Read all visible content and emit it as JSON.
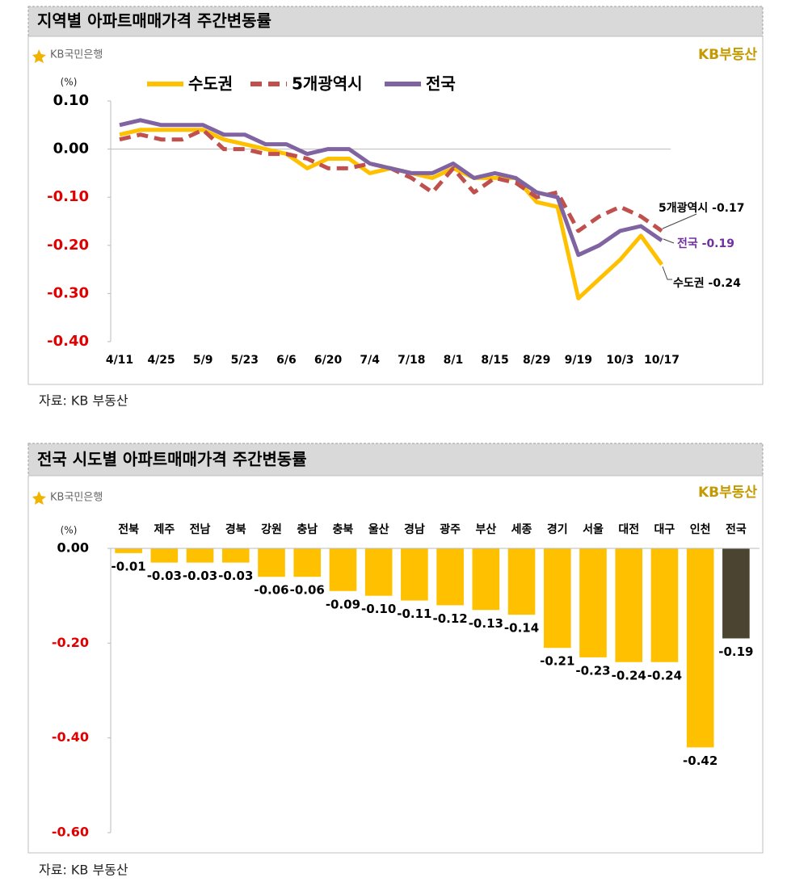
{
  "chart_data": [
    {
      "type": "line",
      "title": "지역별 아파트매매가격 주간변동률",
      "bank_logo": "KB국민은행",
      "brand_logo": "KB부동산",
      "unit": "(%)",
      "source": "자료: KB 부동산",
      "categories": [
        "4/11",
        null,
        "4/25",
        null,
        "5/9",
        null,
        "5/23",
        null,
        "6/6",
        null,
        "6/20",
        null,
        "7/4",
        null,
        "7/18",
        null,
        "8/1",
        null,
        "8/15",
        null,
        "8/29",
        null,
        "9/19",
        null,
        "10/3",
        null,
        "10/17"
      ],
      "series": [
        {
          "name": "수도권",
          "color": "#ffc000",
          "style": "solid",
          "values": [
            0.03,
            0.04,
            0.04,
            0.04,
            0.04,
            0.02,
            0.01,
            0.0,
            -0.01,
            -0.04,
            -0.02,
            -0.02,
            -0.05,
            -0.04,
            -0.05,
            -0.06,
            -0.04,
            -0.06,
            -0.06,
            -0.06,
            -0.11,
            -0.12,
            -0.31,
            -0.27,
            -0.23,
            -0.18,
            -0.24
          ]
        },
        {
          "name": "5개광역시",
          "color": "#c0504d",
          "style": "dashed",
          "values": [
            0.02,
            0.03,
            0.02,
            0.02,
            0.04,
            0.0,
            0.0,
            -0.01,
            -0.01,
            -0.02,
            -0.04,
            -0.04,
            -0.03,
            -0.04,
            -0.06,
            -0.09,
            -0.04,
            -0.09,
            -0.06,
            -0.07,
            -0.1,
            -0.09,
            -0.17,
            -0.14,
            -0.12,
            -0.14,
            -0.17
          ]
        },
        {
          "name": "전국",
          "color": "#8064a2",
          "style": "solid",
          "values": [
            0.05,
            0.06,
            0.05,
            0.05,
            0.05,
            0.03,
            0.03,
            0.01,
            0.01,
            -0.01,
            0.0,
            0.0,
            -0.03,
            -0.04,
            -0.05,
            -0.05,
            -0.03,
            -0.06,
            -0.05,
            -0.06,
            -0.09,
            -0.1,
            -0.22,
            -0.2,
            -0.17,
            -0.16,
            -0.19
          ]
        }
      ],
      "end_labels": [
        "수도권 -0.24",
        "5개광역시 -0.17",
        "전국 -0.19"
      ],
      "ylim": [
        -0.4,
        0.1
      ],
      "yticks": [
        {
          "value": 0.1,
          "label": "0.10"
        },
        {
          "value": 0,
          "label": "0.00"
        },
        {
          "value": -0.1,
          "label": "-0.10"
        },
        {
          "value": -0.2,
          "label": "-0.20"
        },
        {
          "value": -0.3,
          "label": "-0.30"
        },
        {
          "value": -0.4,
          "label": "-0.40"
        }
      ],
      "grid": false
    },
    {
      "type": "bar",
      "title": "전국 시도별 아파트매매가격 주간변동률",
      "bank_logo": "KB국민은행",
      "brand_logo": "KB부동산",
      "unit": "(%)",
      "source": "자료: KB 부동산",
      "categories": [
        "전북",
        "제주",
        "전남",
        "경북",
        "강원",
        "충남",
        "충북",
        "울산",
        "경남",
        "광주",
        "부산",
        "세종",
        "경기",
        "서울",
        "대전",
        "대구",
        "인천",
        "전국"
      ],
      "values": [
        -0.01,
        -0.03,
        -0.03,
        -0.03,
        -0.06,
        -0.06,
        -0.09,
        -0.1,
        -0.11,
        -0.12,
        -0.13,
        -0.14,
        -0.21,
        -0.23,
        -0.24,
        -0.24,
        -0.42,
        -0.19
      ],
      "value_labels": [
        "-0.01",
        "-0.03",
        "-0.03",
        "-0.03",
        "-0.06",
        "-0.06",
        "-0.09",
        "-0.10",
        "-0.11",
        "-0.12",
        "-0.13",
        "-0.14",
        "-0.21",
        "-0.23",
        "-0.24",
        "-0.24",
        "-0.42",
        "-0.19"
      ],
      "colors": [
        "#ffc000",
        "#ffc000",
        "#ffc000",
        "#ffc000",
        "#ffc000",
        "#ffc000",
        "#ffc000",
        "#ffc000",
        "#ffc000",
        "#ffc000",
        "#ffc000",
        "#ffc000",
        "#ffc000",
        "#ffc000",
        "#ffc000",
        "#ffc000",
        "#ffc000",
        "#4a4430"
      ],
      "ylim": [
        -0.6,
        0
      ],
      "yticks": [
        {
          "value": 0,
          "label": "0.00"
        },
        {
          "value": -0.2,
          "label": "-0.20"
        },
        {
          "value": -0.4,
          "label": "-0.40"
        },
        {
          "value": -0.6,
          "label": "-0.60"
        }
      ],
      "grid": false
    }
  ]
}
